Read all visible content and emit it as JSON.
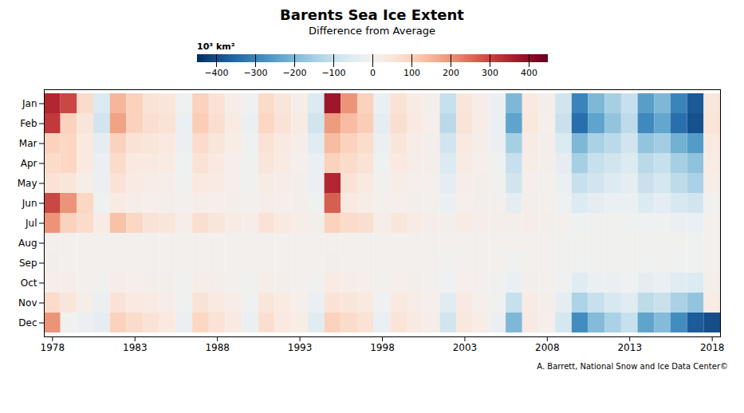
{
  "chart_data": {
    "type": "heatmap",
    "title": "Barents Sea Ice Extent",
    "subtitle": "Difference from Average",
    "annotation": "A. Barrett, National Snow and Ice Data Center©",
    "x": [
      1978,
      1979,
      1980,
      1981,
      1982,
      1983,
      1984,
      1985,
      1986,
      1987,
      1988,
      1989,
      1990,
      1991,
      1992,
      1993,
      1994,
      1995,
      1996,
      1997,
      1998,
      1999,
      2000,
      2001,
      2002,
      2003,
      2004,
      2005,
      2006,
      2007,
      2008,
      2009,
      2010,
      2011,
      2012,
      2013,
      2014,
      2015,
      2016,
      2017,
      2018
    ],
    "categories": [
      "Jan",
      "Feb",
      "Mar",
      "Apr",
      "May",
      "Jun",
      "Jul",
      "Aug",
      "Sep",
      "Oct",
      "Nov",
      "Dec"
    ],
    "xlim": [
      1977.5,
      2018.5
    ],
    "xticks": [
      1978,
      1983,
      1988,
      1993,
      1998,
      2003,
      2008,
      2013,
      2018
    ],
    "grid": false,
    "color_range": [
      -450,
      450
    ],
    "colorbar_ticks": [
      -400,
      -300,
      -200,
      -100,
      0,
      100,
      200,
      300,
      400
    ],
    "colorbar_label": "10³ km²",
    "values": [
      [
        350,
        300,
        80,
        -60,
        150,
        100,
        60,
        50,
        -10,
        100,
        60,
        20,
        -10,
        80,
        50,
        20,
        -60,
        380,
        200,
        100,
        -30,
        60,
        30,
        10,
        -100,
        50,
        20,
        -20,
        -200,
        40,
        10,
        -80,
        -300,
        -200,
        -150,
        -100,
        -250,
        -200,
        -300,
        -380,
        50
      ],
      [
        320,
        100,
        50,
        -80,
        180,
        100,
        70,
        60,
        -30,
        110,
        70,
        30,
        -20,
        90,
        60,
        30,
        -80,
        190,
        140,
        110,
        -40,
        70,
        40,
        15,
        -120,
        55,
        25,
        -30,
        -240,
        45,
        15,
        -95,
        -340,
        -240,
        -175,
        -115,
        -290,
        -235,
        -340,
        -395,
        55
      ],
      [
        100,
        90,
        40,
        -40,
        100,
        60,
        50,
        40,
        -20,
        80,
        50,
        25,
        -10,
        60,
        40,
        20,
        -50,
        140,
        100,
        75,
        -20,
        50,
        25,
        10,
        -80,
        40,
        20,
        -20,
        -150,
        30,
        10,
        -60,
        -200,
        -145,
        -120,
        -80,
        -175,
        -155,
        -215,
        -255,
        40
      ],
      [
        80,
        90,
        40,
        -30,
        80,
        40,
        35,
        30,
        -10,
        60,
        40,
        15,
        -5,
        50,
        30,
        15,
        -30,
        100,
        80,
        60,
        -10,
        40,
        20,
        10,
        -60,
        30,
        15,
        -10,
        -100,
        25,
        10,
        -40,
        -150,
        -100,
        -80,
        -60,
        -120,
        -100,
        -150,
        -180,
        30
      ],
      [
        60,
        50,
        20,
        -20,
        60,
        30,
        25,
        20,
        -5,
        40,
        30,
        15,
        -5,
        30,
        20,
        10,
        -20,
        350,
        60,
        40,
        -5,
        25,
        15,
        5,
        -40,
        20,
        10,
        -5,
        -80,
        15,
        5,
        -25,
        -100,
        -80,
        -60,
        -40,
        -95,
        -75,
        -115,
        -145,
        20
      ],
      [
        300,
        200,
        90,
        -10,
        30,
        20,
        15,
        10,
        5,
        20,
        15,
        10,
        5,
        20,
        15,
        10,
        -10,
        270,
        40,
        25,
        5,
        15,
        10,
        5,
        -20,
        15,
        10,
        5,
        -40,
        10,
        5,
        -15,
        -60,
        -40,
        -30,
        -20,
        -60,
        -40,
        -70,
        -80,
        -5
      ],
      [
        200,
        100,
        80,
        30,
        130,
        90,
        60,
        50,
        20,
        70,
        50,
        30,
        20,
        60,
        40,
        25,
        10,
        100,
        80,
        70,
        20,
        50,
        30,
        20,
        10,
        30,
        20,
        10,
        10,
        20,
        10,
        5,
        -10,
        -5,
        -5,
        -10,
        -15,
        -10,
        -20,
        -30,
        5
      ],
      [
        5,
        5,
        5,
        5,
        5,
        5,
        5,
        5,
        5,
        5,
        5,
        5,
        5,
        5,
        5,
        5,
        5,
        5,
        5,
        5,
        5,
        5,
        5,
        5,
        5,
        5,
        5,
        5,
        5,
        5,
        5,
        -5,
        -5,
        -5,
        -5,
        -5,
        -5,
        -5,
        -5,
        -10,
        5
      ],
      [
        10,
        5,
        5,
        5,
        5,
        5,
        5,
        5,
        5,
        5,
        5,
        5,
        5,
        5,
        5,
        5,
        5,
        10,
        5,
        5,
        5,
        5,
        5,
        5,
        -5,
        5,
        5,
        5,
        -10,
        5,
        5,
        -5,
        -10,
        -5,
        -5,
        -5,
        -10,
        -5,
        -10,
        -10,
        5
      ],
      [
        15,
        20,
        5,
        -5,
        20,
        15,
        10,
        10,
        -5,
        20,
        10,
        5,
        -5,
        20,
        10,
        5,
        -5,
        30,
        20,
        15,
        -5,
        15,
        10,
        5,
        -15,
        15,
        5,
        -5,
        -30,
        10,
        5,
        -10,
        -50,
        -30,
        -20,
        -15,
        -40,
        -30,
        -50,
        -60,
        10
      ],
      [
        80,
        50,
        20,
        -20,
        60,
        40,
        30,
        20,
        -10,
        60,
        40,
        20,
        -10,
        50,
        30,
        15,
        -30,
        60,
        50,
        40,
        -15,
        40,
        25,
        15,
        -50,
        35,
        15,
        -10,
        -100,
        30,
        10,
        -40,
        -140,
        -100,
        -70,
        -50,
        -115,
        -95,
        -145,
        -175,
        30
      ],
      [
        200,
        -5,
        -20,
        -40,
        100,
        80,
        60,
        40,
        -20,
        90,
        60,
        35,
        -20,
        70,
        40,
        25,
        -50,
        100,
        80,
        60,
        -30,
        55,
        35,
        20,
        -80,
        45,
        25,
        -20,
        -200,
        35,
        15,
        -75,
        -285,
        -195,
        -145,
        -100,
        -240,
        -195,
        -285,
        -375,
        -400
      ]
    ]
  }
}
